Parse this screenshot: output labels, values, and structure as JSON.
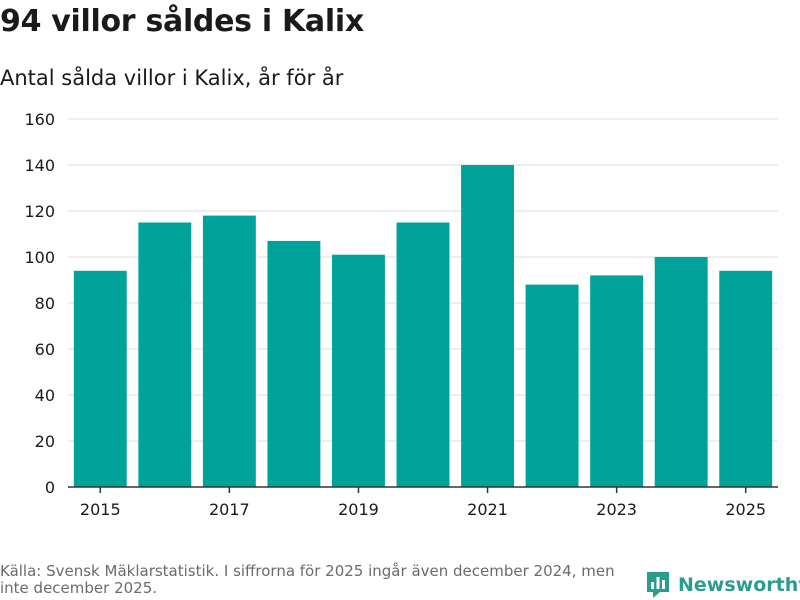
{
  "header": {
    "title": "94 villor såldes i Kalix",
    "subtitle": "Antal sålda villor i Kalix, år för år"
  },
  "footer": {
    "source": "Källa: Svensk Mäklarstatistik. I siffrorna för 2025 ingår även december 2024, men inte december 2025.",
    "brand": "Newsworthy"
  },
  "colors": {
    "bar": "#00a39a",
    "grid": "#dddddd",
    "axis": "#333333",
    "text": "#1a1a1a",
    "brand": "#2a9d8f"
  },
  "chart_data": {
    "type": "bar",
    "title": "94 villor såldes i Kalix",
    "subtitle": "Antal sålda villor i Kalix, år för år",
    "xlabel": "",
    "ylabel": "",
    "categories": [
      "2015",
      "2016",
      "2017",
      "2018",
      "2019",
      "2020",
      "2021",
      "2022",
      "2023",
      "2024",
      "2025"
    ],
    "values": [
      94,
      115,
      118,
      107,
      101,
      115,
      140,
      88,
      92,
      100,
      94
    ],
    "x_tick_labels": [
      "2015",
      "2017",
      "2019",
      "2021",
      "2023",
      "2025"
    ],
    "y_ticks": [
      0,
      20,
      40,
      60,
      80,
      100,
      120,
      140,
      160
    ],
    "ylim": [
      0,
      160
    ],
    "grid": true,
    "legend": "none"
  }
}
